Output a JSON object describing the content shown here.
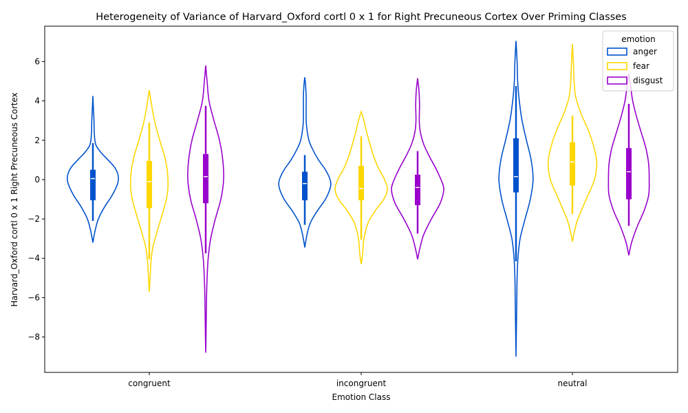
{
  "chart_data": {
    "type": "violin",
    "title": "Heterogeneity of Variance of Harvard_Oxford cortl 0 x 1 for Right Precuneous Cortex Over Priming Classes",
    "xlabel": "Emotion Class",
    "ylabel": "Harvard_Oxford cortl 0 x 1 Right Precuneous Cortex",
    "categories": [
      "congruent",
      "incongruent",
      "neutral"
    ],
    "ylim": [
      -9.8,
      7.8
    ],
    "yticks": [
      6,
      4,
      2,
      0,
      -2,
      -4,
      -6,
      -8
    ],
    "ytick_labels": [
      "6",
      "4",
      "2",
      "0",
      "−2",
      "−4",
      "−6",
      "−8"
    ],
    "legend": {
      "title": "emotion",
      "position": "top-right",
      "entries": [
        "anger",
        "fear",
        "disgust"
      ]
    },
    "series": [
      {
        "name": "anger",
        "color": "#0052cc",
        "violins": [
          {
            "category": "congruent",
            "min": -3.2,
            "max": 4.25,
            "q1": -1.05,
            "median": 0.05,
            "q3": 0.5,
            "whisker_low": -2.1,
            "whisker_high": 1.85,
            "profile": [
              [
                -3.2,
                0.0
              ],
              [
                -2.6,
                0.08
              ],
              [
                -2.0,
                0.2
              ],
              [
                -1.4,
                0.42
              ],
              [
                -0.8,
                0.7
              ],
              [
                -0.2,
                0.9
              ],
              [
                0.2,
                0.92
              ],
              [
                0.6,
                0.8
              ],
              [
                1.0,
                0.55
              ],
              [
                1.4,
                0.28
              ],
              [
                1.8,
                0.1
              ],
              [
                2.4,
                0.05
              ],
              [
                3.0,
                0.04
              ],
              [
                3.6,
                0.02
              ],
              [
                4.25,
                0.0
              ]
            ]
          },
          {
            "category": "incongruent",
            "min": -3.45,
            "max": 5.2,
            "q1": -1.05,
            "median": -0.2,
            "q3": 0.4,
            "whisker_low": -2.3,
            "whisker_high": 1.25,
            "profile": [
              [
                -3.45,
                0.0
              ],
              [
                -2.8,
                0.08
              ],
              [
                -2.2,
                0.2
              ],
              [
                -1.6,
                0.45
              ],
              [
                -1.0,
                0.75
              ],
              [
                -0.4,
                0.93
              ],
              [
                0.0,
                0.92
              ],
              [
                0.5,
                0.75
              ],
              [
                1.0,
                0.5
              ],
              [
                1.5,
                0.3
              ],
              [
                2.0,
                0.15
              ],
              [
                2.8,
                0.06
              ],
              [
                3.5,
                0.05
              ],
              [
                4.2,
                0.05
              ],
              [
                4.8,
                0.03
              ],
              [
                5.2,
                0.0
              ]
            ]
          },
          {
            "category": "neutral",
            "min": -9.0,
            "max": 7.05,
            "q1": -0.65,
            "median": 0.15,
            "q3": 2.1,
            "whisker_low": -4.15,
            "whisker_high": 4.75,
            "profile": [
              [
                -9.0,
                0.0
              ],
              [
                -8.0,
                0.01
              ],
              [
                -7.0,
                0.02
              ],
              [
                -6.0,
                0.03
              ],
              [
                -5.0,
                0.04
              ],
              [
                -4.0,
                0.07
              ],
              [
                -3.0,
                0.15
              ],
              [
                -2.0,
                0.33
              ],
              [
                -1.0,
                0.52
              ],
              [
                0.0,
                0.62
              ],
              [
                1.0,
                0.55
              ],
              [
                2.0,
                0.38
              ],
              [
                3.0,
                0.22
              ],
              [
                4.0,
                0.12
              ],
              [
                5.0,
                0.06
              ],
              [
                6.0,
                0.04
              ],
              [
                7.05,
                0.0
              ]
            ]
          }
        ]
      },
      {
        "name": "fear",
        "color": "#ffd600",
        "violins": [
          {
            "category": "congruent",
            "min": -5.7,
            "max": 4.55,
            "q1": -1.45,
            "median": -0.1,
            "q3": 0.95,
            "whisker_low": -4.05,
            "whisker_high": 2.9,
            "profile": [
              [
                -5.7,
                0.0
              ],
              [
                -5.0,
                0.03
              ],
              [
                -4.2,
                0.06
              ],
              [
                -3.5,
                0.12
              ],
              [
                -2.8,
                0.25
              ],
              [
                -2.0,
                0.42
              ],
              [
                -1.0,
                0.62
              ],
              [
                -0.3,
                0.68
              ],
              [
                0.5,
                0.65
              ],
              [
                1.2,
                0.55
              ],
              [
                2.0,
                0.38
              ],
              [
                2.8,
                0.22
              ],
              [
                3.5,
                0.12
              ],
              [
                4.0,
                0.06
              ],
              [
                4.55,
                0.0
              ]
            ]
          },
          {
            "category": "incongruent",
            "min": -4.3,
            "max": 3.45,
            "q1": -1.05,
            "median": -0.45,
            "q3": 0.7,
            "whisker_low": -3.05,
            "whisker_high": 2.2,
            "profile": [
              [
                -4.3,
                0.0
              ],
              [
                -3.8,
                0.05
              ],
              [
                -3.0,
                0.1
              ],
              [
                -2.2,
                0.25
              ],
              [
                -1.6,
                0.5
              ],
              [
                -1.0,
                0.82
              ],
              [
                -0.5,
                0.95
              ],
              [
                0.0,
                0.85
              ],
              [
                0.6,
                0.62
              ],
              [
                1.2,
                0.45
              ],
              [
                1.8,
                0.32
              ],
              [
                2.4,
                0.2
              ],
              [
                3.0,
                0.1
              ],
              [
                3.45,
                0.0
              ]
            ]
          },
          {
            "category": "neutral",
            "min": -3.15,
            "max": 6.9,
            "q1": -0.3,
            "median": 0.9,
            "q3": 1.9,
            "whisker_low": -1.75,
            "whisker_high": 3.25,
            "profile": [
              [
                -3.15,
                0.0
              ],
              [
                -2.6,
                0.08
              ],
              [
                -2.0,
                0.2
              ],
              [
                -1.0,
                0.5
              ],
              [
                0.0,
                0.8
              ],
              [
                0.9,
                0.88
              ],
              [
                1.8,
                0.75
              ],
              [
                2.6,
                0.55
              ],
              [
                3.4,
                0.3
              ],
              [
                4.2,
                0.12
              ],
              [
                5.0,
                0.06
              ],
              [
                5.8,
                0.04
              ],
              [
                6.4,
                0.02
              ],
              [
                6.9,
                0.0
              ]
            ]
          }
        ]
      },
      {
        "name": "disgust",
        "color": "#9900cc",
        "violins": [
          {
            "category": "congruent",
            "min": -8.8,
            "max": 5.8,
            "q1": -1.2,
            "median": 0.15,
            "q3": 1.3,
            "whisker_low": -3.75,
            "whisker_high": 3.75,
            "profile": [
              [
                -8.8,
                0.0
              ],
              [
                -8.0,
                0.01
              ],
              [
                -7.0,
                0.02
              ],
              [
                -6.0,
                0.03
              ],
              [
                -5.0,
                0.05
              ],
              [
                -4.0,
                0.09
              ],
              [
                -3.0,
                0.18
              ],
              [
                -2.0,
                0.35
              ],
              [
                -1.0,
                0.55
              ],
              [
                0.0,
                0.65
              ],
              [
                1.0,
                0.62
              ],
              [
                2.0,
                0.5
              ],
              [
                3.0,
                0.3
              ],
              [
                4.0,
                0.12
              ],
              [
                5.0,
                0.05
              ],
              [
                5.8,
                0.0
              ]
            ]
          },
          {
            "category": "incongruent",
            "min": -4.05,
            "max": 5.15,
            "q1": -1.3,
            "median": -0.4,
            "q3": 0.25,
            "whisker_low": -2.75,
            "whisker_high": 1.45,
            "profile": [
              [
                -4.05,
                0.0
              ],
              [
                -3.5,
                0.08
              ],
              [
                -2.8,
                0.22
              ],
              [
                -2.0,
                0.5
              ],
              [
                -1.2,
                0.82
              ],
              [
                -0.5,
                0.95
              ],
              [
                0.0,
                0.85
              ],
              [
                0.6,
                0.65
              ],
              [
                1.2,
                0.42
              ],
              [
                1.8,
                0.22
              ],
              [
                2.4,
                0.1
              ],
              [
                3.0,
                0.06
              ],
              [
                3.8,
                0.07
              ],
              [
                4.5,
                0.05
              ],
              [
                5.15,
                0.0
              ]
            ]
          },
          {
            "category": "neutral",
            "min": -3.85,
            "max": 5.4,
            "q1": -1.0,
            "median": 0.4,
            "q3": 1.6,
            "whisker_low": -2.35,
            "whisker_high": 3.85,
            "profile": [
              [
                -3.85,
                0.0
              ],
              [
                -3.2,
                0.1
              ],
              [
                -2.4,
                0.3
              ],
              [
                -1.6,
                0.55
              ],
              [
                -0.8,
                0.72
              ],
              [
                0.0,
                0.74
              ],
              [
                0.8,
                0.72
              ],
              [
                1.6,
                0.62
              ],
              [
                2.4,
                0.45
              ],
              [
                3.2,
                0.28
              ],
              [
                4.0,
                0.14
              ],
              [
                4.8,
                0.06
              ],
              [
                5.4,
                0.0
              ]
            ]
          }
        ]
      }
    ]
  }
}
